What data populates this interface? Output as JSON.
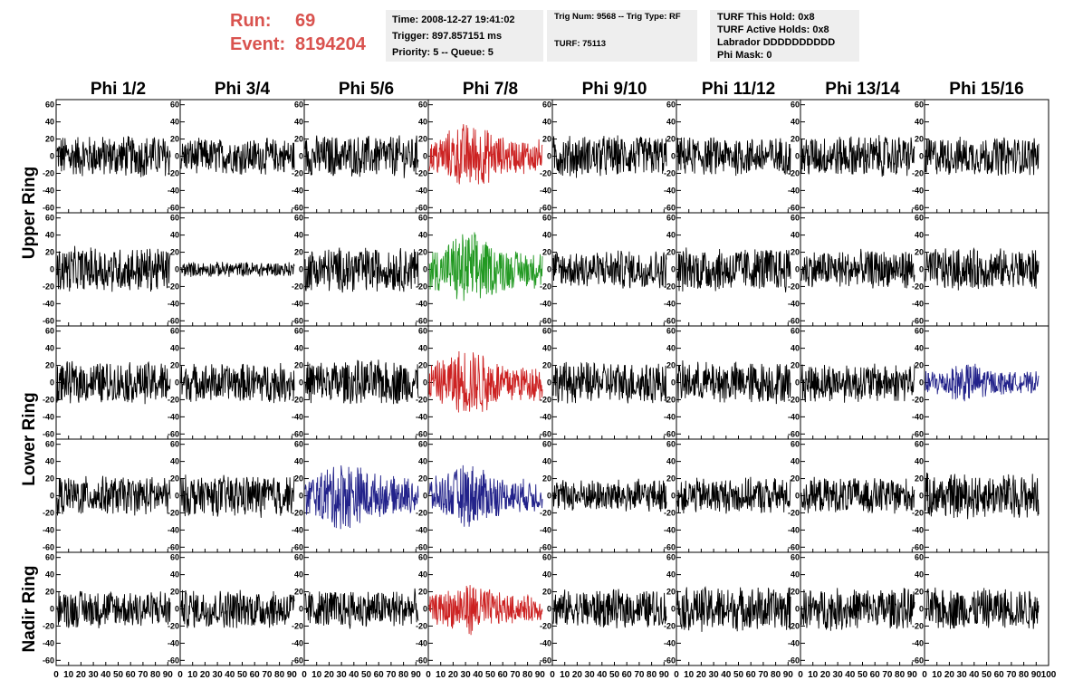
{
  "header": {
    "run_label": "Run:",
    "run_value": "69",
    "event_label": "Event:",
    "event_value": "8194204",
    "box1": [
      "Time: 2008-12-27 19:41:02",
      "Trigger: 897.857151 ms",
      "Priority: 5 -- Queue: 5"
    ],
    "box2": [
      "Trig Num: 9568 -- Trig Type: RF",
      "TURF: 75113"
    ],
    "box3": [
      "TURF This Hold: 0x8",
      "TURF Active Holds: 0x8",
      "Labrador DDDDDDDDDD",
      "Phi Mask: 0"
    ]
  },
  "colors": {
    "header_text": "#d9534f",
    "box_bg": "#eeeeee",
    "trace_default": "#000000",
    "trace_red": "#cc2222",
    "trace_green": "#229922",
    "trace_blue": "#22228a"
  },
  "chart_data": {
    "type": "line",
    "columns": [
      "Phi 1/2",
      "Phi 3/4",
      "Phi 5/6",
      "Phi 7/8",
      "Phi 9/10",
      "Phi 11/12",
      "Phi 13/14",
      "Phi 15/16"
    ],
    "ring_labels": [
      {
        "label": "Upper Ring",
        "rows": [
          0,
          1
        ]
      },
      {
        "label": "Lower Ring",
        "rows": [
          2,
          3
        ]
      },
      {
        "label": "Nadir Ring",
        "rows": [
          4
        ]
      }
    ],
    "y_ticks": [
      -60,
      -40,
      -20,
      0,
      20,
      40,
      60
    ],
    "y_tick_labels": [
      "-60",
      "-40",
      "-20",
      "0",
      "20",
      "40",
      "60"
    ],
    "ylim": [
      -66,
      66
    ],
    "x_tick_labels": [
      "0",
      "10",
      "20",
      "30",
      "40",
      "50",
      "60",
      "70",
      "80",
      "90",
      "100"
    ],
    "xlim": [
      0,
      100
    ],
    "samples_per_trace": 256,
    "panels": [
      [
        {
          "color": "black",
          "amp": 14
        },
        {
          "color": "black",
          "amp": 12
        },
        {
          "color": "black",
          "amp": 14
        },
        {
          "color": "red",
          "amp": 18
        },
        {
          "color": "black",
          "amp": 14
        },
        {
          "color": "black",
          "amp": 13
        },
        {
          "color": "black",
          "amp": 14
        },
        {
          "color": "black",
          "amp": 13
        }
      ],
      [
        {
          "color": "black",
          "amp": 15
        },
        {
          "color": "black",
          "amp": 5
        },
        {
          "color": "black",
          "amp": 15
        },
        {
          "color": "green",
          "amp": 20
        },
        {
          "color": "black",
          "amp": 13
        },
        {
          "color": "black",
          "amp": 15
        },
        {
          "color": "black",
          "amp": 13
        },
        {
          "color": "black",
          "amp": 14
        }
      ],
      [
        {
          "color": "black",
          "amp": 14
        },
        {
          "color": "black",
          "amp": 13
        },
        {
          "color": "black",
          "amp": 15
        },
        {
          "color": "red",
          "amp": 19
        },
        {
          "color": "black",
          "amp": 14
        },
        {
          "color": "black",
          "amp": 14
        },
        {
          "color": "black",
          "amp": 13
        },
        {
          "color": "blue",
          "amp": 11
        }
      ],
      [
        {
          "color": "black",
          "amp": 13
        },
        {
          "color": "black",
          "amp": 14
        },
        {
          "color": "blue",
          "amp": 19
        },
        {
          "color": "blue",
          "amp": 17
        },
        {
          "color": "black",
          "amp": 11
        },
        {
          "color": "black",
          "amp": 12
        },
        {
          "color": "black",
          "amp": 12
        },
        {
          "color": "black",
          "amp": 15
        }
      ],
      [
        {
          "color": "black",
          "amp": 13
        },
        {
          "color": "black",
          "amp": 13
        },
        {
          "color": "black",
          "amp": 13
        },
        {
          "color": "red",
          "amp": 14
        },
        {
          "color": "black",
          "amp": 13
        },
        {
          "color": "black",
          "amp": 15
        },
        {
          "color": "black",
          "amp": 14
        },
        {
          "color": "black",
          "amp": 14
        }
      ]
    ]
  }
}
